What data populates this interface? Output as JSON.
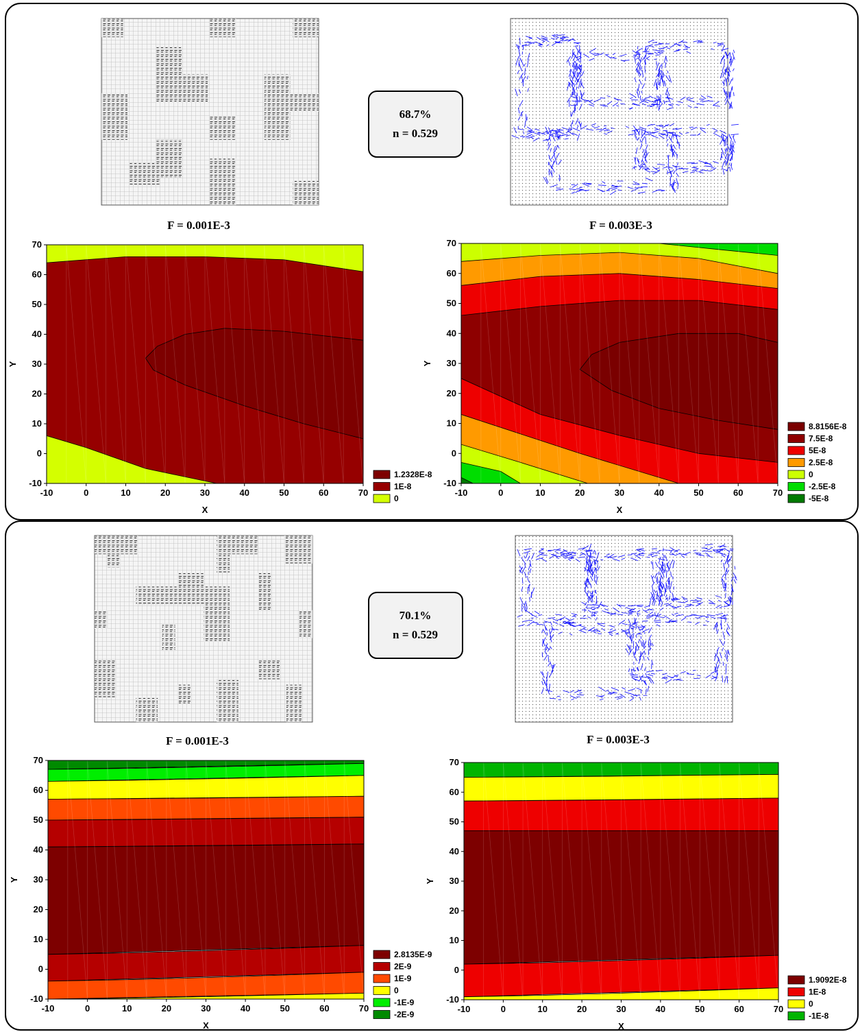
{
  "panels": [
    {
      "percent": "68.7%",
      "n": "n = 0.529"
    },
    {
      "percent": "70.1%",
      "n": "n = 0.529"
    }
  ],
  "chart_data": [
    {
      "type": "contour",
      "title": "F = 0.001E-3",
      "x_label": "X",
      "y_label": "Y",
      "xlim": [
        -10,
        70
      ],
      "ylim": [
        -10,
        70
      ],
      "xticks": [
        -10,
        0,
        10,
        20,
        30,
        40,
        50,
        60,
        70
      ],
      "yticks": [
        -10,
        0,
        10,
        20,
        30,
        40,
        50,
        60,
        70
      ],
      "series": [
        {
          "name": "1.2328E-8",
          "value": 1.2328e-08,
          "color": "#7d0000"
        },
        {
          "name": "1E-8",
          "value": 1e-08,
          "color": "#960000"
        },
        {
          "name": "0",
          "value": 0,
          "color": "#d4ff00"
        }
      ]
    },
    {
      "type": "contour",
      "title": "F = 0.003E-3",
      "x_label": "X",
      "y_label": "Y",
      "xlim": [
        -10,
        70
      ],
      "ylim": [
        -10,
        70
      ],
      "xticks": [
        -10,
        0,
        10,
        20,
        30,
        40,
        50,
        60,
        70
      ],
      "yticks": [
        -10,
        0,
        10,
        20,
        30,
        40,
        50,
        60,
        70
      ],
      "series": [
        {
          "name": "8.8156E-8",
          "value": 8.8156e-08,
          "color": "#7a0000"
        },
        {
          "name": "7.5E-8",
          "value": 7.5e-08,
          "color": "#8e0000"
        },
        {
          "name": "5E-8",
          "value": 5e-08,
          "color": "#ee0000"
        },
        {
          "name": "2.5E-8",
          "value": 2.5e-08,
          "color": "#ff9a00"
        },
        {
          "name": "0",
          "value": 0,
          "color": "#ccff00"
        },
        {
          "name": "-2.5E-8",
          "value": -2.5e-08,
          "color": "#00dd00"
        },
        {
          "name": "-5E-8",
          "value": -5e-08,
          "color": "#007a00"
        }
      ]
    },
    {
      "type": "contour",
      "title": "F = 0.001E-3",
      "x_label": "X",
      "y_label": "Y",
      "xlim": [
        -10,
        70
      ],
      "ylim": [
        -10,
        70
      ],
      "xticks": [
        -10,
        0,
        10,
        20,
        30,
        40,
        50,
        60,
        70
      ],
      "yticks": [
        -10,
        0,
        10,
        20,
        30,
        40,
        50,
        60,
        70
      ],
      "series": [
        {
          "name": "2.8135E-9",
          "value": 2.8135e-09,
          "color": "#7d0000"
        },
        {
          "name": "2E-9",
          "value": 2e-09,
          "color": "#b50000"
        },
        {
          "name": "1E-9",
          "value": 1e-09,
          "color": "#ff4a00"
        },
        {
          "name": "0",
          "value": 0,
          "color": "#ffff00"
        },
        {
          "name": "-1E-9",
          "value": -1e-09,
          "color": "#00ee00"
        },
        {
          "name": "-2E-9",
          "value": -2e-09,
          "color": "#008a00"
        }
      ]
    },
    {
      "type": "contour",
      "title": "F = 0.003E-3",
      "x_label": "X",
      "y_label": "Y",
      "xlim": [
        -10,
        70
      ],
      "ylim": [
        -10,
        70
      ],
      "xticks": [
        -10,
        0,
        10,
        20,
        30,
        40,
        50,
        60,
        70
      ],
      "yticks": [
        -10,
        0,
        10,
        20,
        30,
        40,
        50,
        60,
        70
      ],
      "series": [
        {
          "name": "1.9092E-8",
          "value": 1.9092e-08,
          "color": "#7d0000"
        },
        {
          "name": "1E-8",
          "value": 1e-08,
          "color": "#ee0000"
        },
        {
          "name": "0",
          "value": 0,
          "color": "#ffff00"
        },
        {
          "name": "-1E-8",
          "value": -1e-08,
          "color": "#00b400"
        }
      ]
    }
  ]
}
